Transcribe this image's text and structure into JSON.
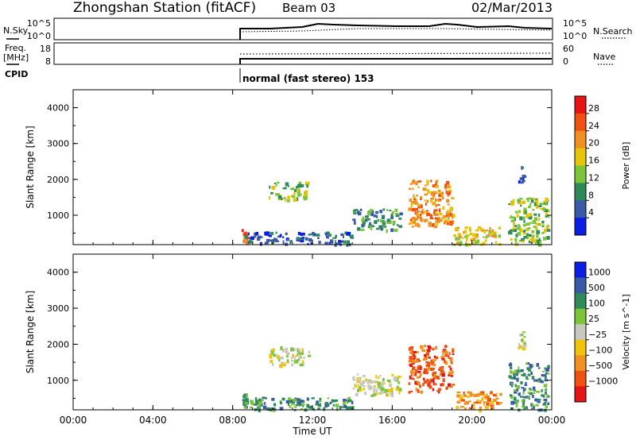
{
  "header": {
    "station": "Zhongshan Station (fitACF)",
    "beam": "Beam 03",
    "date": "02/Mar/2013"
  },
  "summary_panels": {
    "nsky_label": "N.Sky",
    "nsky_ticks": [
      "10^5",
      "10^0"
    ],
    "nsearch_label": "N.Search",
    "nsearch_ticks": [
      "10^5",
      "10^0"
    ],
    "freq_label": "Freq.",
    "freq_unit": "[MHz]",
    "freq_ticks": [
      "18",
      "8"
    ],
    "nave_label": "Nave",
    "nave_ticks": [
      "60",
      "0"
    ],
    "cpid_label": "CPID",
    "cpid_text": "normal (fast stereo) 153"
  },
  "chart_data": [
    {
      "type": "heatmap",
      "name": "power",
      "ylabel": "Slant Range [km]",
      "yticks": [
        1000,
        2000,
        3000,
        4000
      ],
      "ylim": [
        180,
        4500
      ],
      "xlim": [
        0,
        24
      ],
      "xticks": [
        "00:00",
        "04:00",
        "08:00",
        "12:00",
        "16:00",
        "20:00",
        "00:00"
      ],
      "colorbar": {
        "label": "Power [dB]",
        "ticks": [
          "4",
          "8",
          "12",
          "16",
          "20",
          "24",
          "28"
        ],
        "colors": [
          "#0a1ee6",
          "#3a5aa8",
          "#2f8a5a",
          "#7cc43a",
          "#e6c40a",
          "#f09020",
          "#f05010",
          "#e61414"
        ]
      },
      "echo_regions": [
        {
          "t0": 8.4,
          "t1": 8.7,
          "r0": 180,
          "r1": 650,
          "level": 6
        },
        {
          "t0": 9.8,
          "t1": 11.8,
          "r0": 1450,
          "r1": 1950,
          "level": 3
        },
        {
          "t0": 8.6,
          "t1": 14.0,
          "r0": 200,
          "r1": 550,
          "level": 1
        },
        {
          "t0": 14.0,
          "t1": 16.4,
          "r0": 600,
          "r1": 1200,
          "level": 2
        },
        {
          "t0": 16.8,
          "t1": 19.0,
          "r0": 700,
          "r1": 2000,
          "level": 5
        },
        {
          "t0": 19.0,
          "t1": 21.4,
          "r0": 200,
          "r1": 700,
          "level": 4
        },
        {
          "t0": 21.8,
          "t1": 23.8,
          "r0": 200,
          "r1": 1500,
          "level": 3
        },
        {
          "t0": 22.3,
          "t1": 22.6,
          "r0": 1900,
          "r1": 2400,
          "level": 1
        }
      ]
    },
    {
      "type": "heatmap",
      "name": "velocity",
      "ylabel": "Slant Range [km]",
      "yticks": [
        1000,
        2000,
        3000,
        4000
      ],
      "ylim": [
        180,
        4500
      ],
      "xlim": [
        0,
        24
      ],
      "xticks": [
        "00:00",
        "04:00",
        "08:00",
        "12:00",
        "16:00",
        "20:00",
        "00:00"
      ],
      "xlabel": "Time UT",
      "colorbar": {
        "label": "Velocity [m s^-1]",
        "ticks": [
          "1000",
          "500",
          "100",
          "25",
          "−25",
          "−100",
          "−500",
          "−1000"
        ],
        "colors": [
          "#0a1ee6",
          "#3a5aa8",
          "#2f8a5a",
          "#7cc43a",
          "#c8c8c0",
          "#f0c40a",
          "#f09020",
          "#f05010",
          "#e61414"
        ]
      },
      "echo_regions": [
        {
          "t0": 8.4,
          "t1": 8.7,
          "r0": 180,
          "r1": 650,
          "level": 2
        },
        {
          "t0": 9.8,
          "t1": 11.8,
          "r0": 1450,
          "r1": 1950,
          "level": 4
        },
        {
          "t0": 8.6,
          "t1": 14.0,
          "r0": 200,
          "r1": 550,
          "level": 2
        },
        {
          "t0": 14.0,
          "t1": 16.4,
          "r0": 600,
          "r1": 1200,
          "level": 4
        },
        {
          "t0": 16.8,
          "t1": 19.0,
          "r0": 700,
          "r1": 2000,
          "level": 7
        },
        {
          "t0": 19.0,
          "t1": 21.4,
          "r0": 200,
          "r1": 700,
          "level": 6
        },
        {
          "t0": 21.8,
          "t1": 23.8,
          "r0": 200,
          "r1": 1500,
          "level": 2
        },
        {
          "t0": 22.3,
          "t1": 22.6,
          "r0": 1900,
          "r1": 2400,
          "level": 4
        }
      ]
    }
  ]
}
